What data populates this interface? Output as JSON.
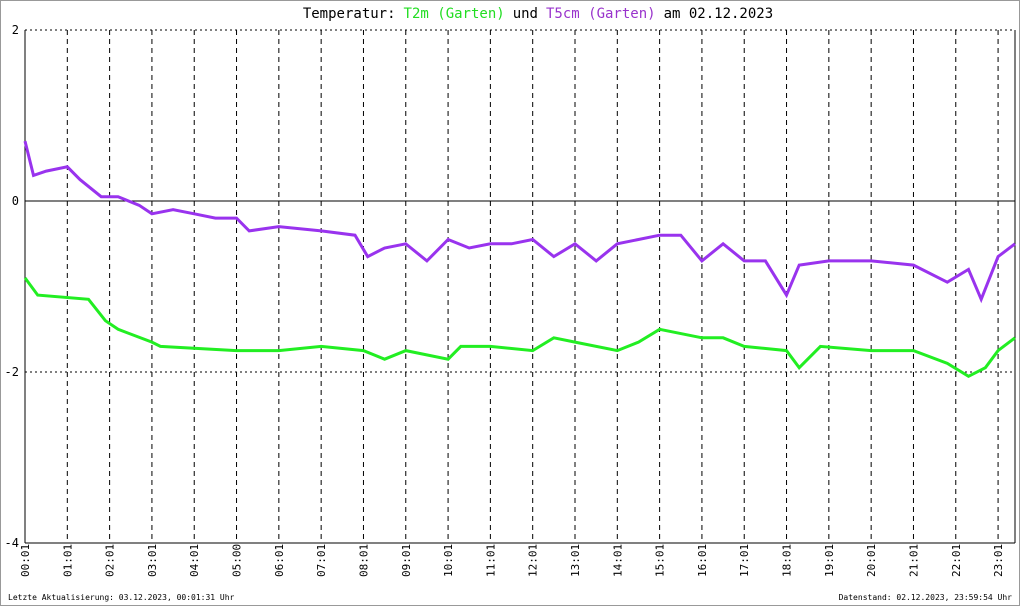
{
  "chart_data": {
    "type": "line",
    "title": [
      {
        "text": "Temperatur:",
        "color": "#000000"
      },
      {
        "text": "T2m (Garten)",
        "color": "#22dd22"
      },
      {
        "text": "und",
        "color": "#000000"
      },
      {
        "text": "T5cm (Garten)",
        "color": "#9933cc"
      },
      {
        "text": "am 02.12.2023",
        "color": "#000000"
      }
    ],
    "footer_left": "Letzte Aktualisierung: 03.12.2023, 00:01:31 Uhr",
    "footer_right": "Datenstand: 02.12.2023, 23:59:54 Uhr",
    "xlim": [
      0,
      23.4
    ],
    "xticks": [
      {
        "value": 0,
        "label": "00:01"
      },
      {
        "value": 1,
        "label": "01:01"
      },
      {
        "value": 2,
        "label": "02:01"
      },
      {
        "value": 3,
        "label": "03:01"
      },
      {
        "value": 4,
        "label": "04:01"
      },
      {
        "value": 5,
        "label": "05:00"
      },
      {
        "value": 6,
        "label": "06:01"
      },
      {
        "value": 7,
        "label": "07:01"
      },
      {
        "value": 8,
        "label": "08:01"
      },
      {
        "value": 9,
        "label": "09:01"
      },
      {
        "value": 10,
        "label": "10:01"
      },
      {
        "value": 11,
        "label": "11:01"
      },
      {
        "value": 12,
        "label": "12:01"
      },
      {
        "value": 13,
        "label": "13:01"
      },
      {
        "value": 14,
        "label": "14:01"
      },
      {
        "value": 15,
        "label": "15:01"
      },
      {
        "value": 16,
        "label": "16:01"
      },
      {
        "value": 17,
        "label": "17:01"
      },
      {
        "value": 18,
        "label": "18:01"
      },
      {
        "value": 19,
        "label": "19:01"
      },
      {
        "value": 20,
        "label": "20:01"
      },
      {
        "value": 21,
        "label": "21:01"
      },
      {
        "value": 22,
        "label": "22:01"
      },
      {
        "value": 23,
        "label": "23:01"
      }
    ],
    "ylim": [
      -4,
      2
    ],
    "yticks": [
      2,
      0,
      -2,
      -4
    ],
    "grid": true,
    "series": [
      {
        "name": "T2m (Garten)",
        "color": "#22ee22",
        "x": [
          0,
          0.3,
          1.5,
          1.9,
          2.2,
          3,
          3.2,
          5,
          6,
          7,
          8,
          8.5,
          9,
          10,
          10.3,
          11,
          12,
          12.5,
          13,
          14,
          14.5,
          15,
          16,
          16.5,
          17,
          18,
          18.3,
          18.8,
          20,
          21,
          21.8,
          22.3,
          22.7,
          23,
          23.4
        ],
        "values": [
          -0.9,
          -1.1,
          -1.15,
          -1.4,
          -1.5,
          -1.65,
          -1.7,
          -1.75,
          -1.75,
          -1.7,
          -1.75,
          -1.85,
          -1.75,
          -1.85,
          -1.7,
          -1.7,
          -1.75,
          -1.6,
          -1.65,
          -1.75,
          -1.65,
          -1.5,
          -1.6,
          -1.6,
          -1.7,
          -1.75,
          -1.95,
          -1.7,
          -1.75,
          -1.75,
          -1.9,
          -2.05,
          -1.95,
          -1.75,
          -1.6
        ]
      },
      {
        "name": "T5cm (Garten)",
        "color": "#9933ee",
        "x": [
          0,
          0.2,
          0.5,
          1,
          1.3,
          1.8,
          2.2,
          2.7,
          3,
          3.5,
          4,
          4.5,
          5,
          5.3,
          6,
          7,
          7.8,
          8.1,
          8.5,
          9,
          9.5,
          10,
          10.5,
          11,
          11.5,
          12,
          12.5,
          13,
          13.5,
          14,
          14.5,
          15,
          15.5,
          16,
          16.5,
          17,
          17.5,
          18,
          18.3,
          19,
          20,
          21,
          21.8,
          22.3,
          22.6,
          23,
          23.4
        ],
        "values": [
          0.7,
          0.3,
          0.35,
          0.4,
          0.25,
          0.05,
          0.05,
          -0.05,
          -0.15,
          -0.1,
          -0.15,
          -0.2,
          -0.2,
          -0.35,
          -0.3,
          -0.35,
          -0.4,
          -0.65,
          -0.55,
          -0.5,
          -0.7,
          -0.45,
          -0.55,
          -0.5,
          -0.5,
          -0.45,
          -0.65,
          -0.5,
          -0.7,
          -0.5,
          -0.45,
          -0.4,
          -0.4,
          -0.7,
          -0.5,
          -0.7,
          -0.7,
          -1.1,
          -0.75,
          -0.7,
          -0.7,
          -0.75,
          -0.95,
          -0.8,
          -1.15,
          -0.65,
          -0.5
        ]
      }
    ]
  }
}
